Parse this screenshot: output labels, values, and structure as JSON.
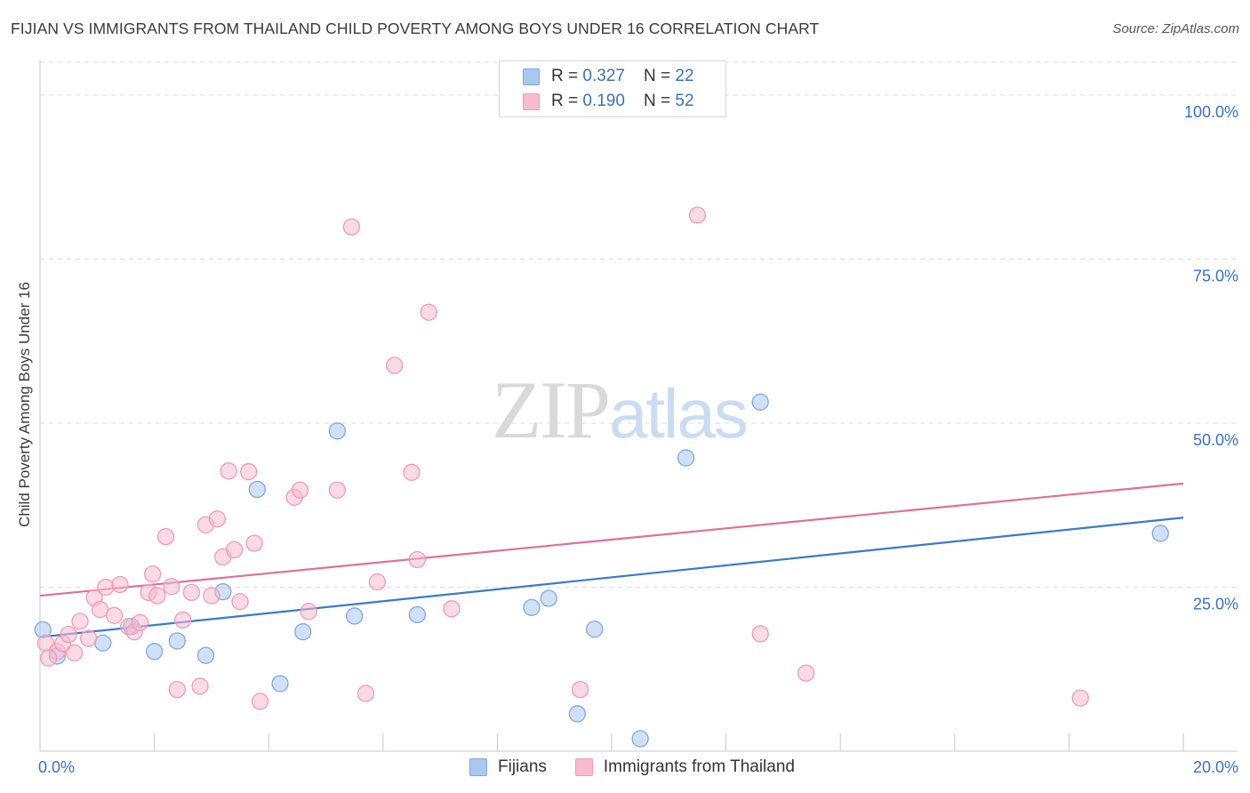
{
  "header": {
    "title": "FIJIAN VS IMMIGRANTS FROM THAILAND CHILD POVERTY AMONG BOYS UNDER 16 CORRELATION CHART",
    "source": "Source: ZipAtlas.com"
  },
  "watermark": {
    "zip": "ZIP",
    "atlas": "atlas"
  },
  "legend_top": {
    "rows": [
      {
        "r_label": "R = ",
        "r_value": "0.327",
        "n_label": "N = ",
        "n_value": "22"
      },
      {
        "r_label": "R = ",
        "r_value": "0.190",
        "n_label": "N = ",
        "n_value": "52"
      }
    ]
  },
  "legend_bottom": {
    "series1": "Fijians",
    "series2": "Immigrants from Thailand"
  },
  "colors": {
    "fijians_fill": "#a9c8f0",
    "fijians_stroke": "#7ea8df",
    "fijians_line": "#3a78d0",
    "thai_fill": "#f6bccd",
    "thai_stroke": "#ef9ab4",
    "thai_line": "#e0709a",
    "grid": "#dcdcdc",
    "tick_text": "#3a6fc9"
  },
  "chart_data": {
    "type": "scatter",
    "title": "FIJIAN VS IMMIGRANTS FROM THAILAND CHILD POVERTY AMONG BOYS UNDER 16 CORRELATION CHART",
    "xlabel": "",
    "ylabel": "Child Poverty Among Boys Under 16",
    "xlim": [
      0,
      20
    ],
    "ylim": [
      0,
      105
    ],
    "x_tick_labels": {
      "min": "0.0%",
      "max": "20.0%"
    },
    "y_ticks": [
      {
        "value": 25,
        "label": "25.0%"
      },
      {
        "value": 50,
        "label": "50.0%"
      },
      {
        "value": 75,
        "label": "75.0%"
      },
      {
        "value": 100,
        "label": "100.0%"
      }
    ],
    "legend_position": "top-center",
    "series": [
      {
        "name": "Fijians",
        "R": 0.327,
        "N": 22,
        "trend": {
          "x0": 0,
          "y0": 17.4,
          "x1": 20,
          "y1": 35.6
        },
        "points": [
          [
            0.05,
            18.5
          ],
          [
            1.1,
            16.5
          ],
          [
            1.6,
            19
          ],
          [
            2.0,
            15.2
          ],
          [
            2.4,
            16.8
          ],
          [
            2.9,
            14.6
          ],
          [
            3.2,
            24.3
          ],
          [
            3.8,
            39.9
          ],
          [
            4.2,
            10.3
          ],
          [
            4.6,
            18.2
          ],
          [
            5.2,
            48.8
          ],
          [
            5.5,
            20.6
          ],
          [
            6.6,
            20.8
          ],
          [
            8.6,
            21.9
          ],
          [
            8.9,
            23.3
          ],
          [
            9.4,
            5.7
          ],
          [
            9.7,
            18.6
          ],
          [
            10.5,
            1.9
          ],
          [
            11.3,
            44.7
          ],
          [
            12.6,
            53.2
          ],
          [
            19.6,
            33.2
          ],
          [
            0.3,
            14.5
          ]
        ]
      },
      {
        "name": "Immigrants from Thailand",
        "R": 0.19,
        "N": 52,
        "trend": {
          "x0": 0,
          "y0": 23.7,
          "x1": 20,
          "y1": 40.8
        },
        "points": [
          [
            0.1,
            16.5
          ],
          [
            0.3,
            15.2
          ],
          [
            0.4,
            16.4
          ],
          [
            0.5,
            17.8
          ],
          [
            0.6,
            15.0
          ],
          [
            0.7,
            19.8
          ],
          [
            0.85,
            17.2
          ],
          [
            0.95,
            23.4
          ],
          [
            1.05,
            21.6
          ],
          [
            1.15,
            25.0
          ],
          [
            1.3,
            20.7
          ],
          [
            1.4,
            25.4
          ],
          [
            1.55,
            19.0
          ],
          [
            1.65,
            18.2
          ],
          [
            1.75,
            19.6
          ],
          [
            1.9,
            24.2
          ],
          [
            1.97,
            27.0
          ],
          [
            2.05,
            23.7
          ],
          [
            2.2,
            32.7
          ],
          [
            2.3,
            25.1
          ],
          [
            2.4,
            9.4
          ],
          [
            2.5,
            20.0
          ],
          [
            2.65,
            24.2
          ],
          [
            2.8,
            9.9
          ],
          [
            2.9,
            34.5
          ],
          [
            3.0,
            23.7
          ],
          [
            3.1,
            35.4
          ],
          [
            3.2,
            29.6
          ],
          [
            3.3,
            42.7
          ],
          [
            3.4,
            30.7
          ],
          [
            3.5,
            22.8
          ],
          [
            3.65,
            42.6
          ],
          [
            3.75,
            31.7
          ],
          [
            3.85,
            7.6
          ],
          [
            4.45,
            38.7
          ],
          [
            4.55,
            39.8
          ],
          [
            4.7,
            21.3
          ],
          [
            5.2,
            39.8
          ],
          [
            5.45,
            79.9
          ],
          [
            5.7,
            8.8
          ],
          [
            5.9,
            25.8
          ],
          [
            6.2,
            58.8
          ],
          [
            6.5,
            42.5
          ],
          [
            6.6,
            29.2
          ],
          [
            6.8,
            66.9
          ],
          [
            7.2,
            21.7
          ],
          [
            9.45,
            9.4
          ],
          [
            11.5,
            81.7
          ],
          [
            12.6,
            17.9
          ],
          [
            13.4,
            11.9
          ],
          [
            18.2,
            8.1
          ],
          [
            0.15,
            14.2
          ]
        ]
      }
    ]
  }
}
